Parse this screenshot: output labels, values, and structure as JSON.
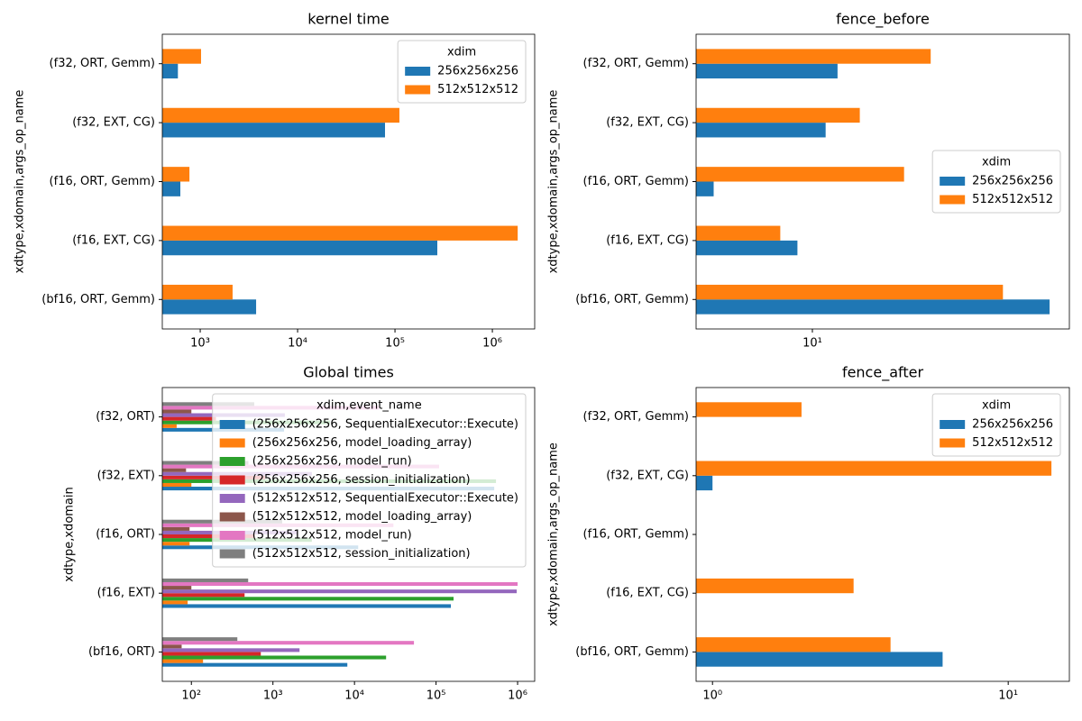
{
  "chart_data": [
    {
      "type": "bar",
      "orientation": "horizontal",
      "log_x": true,
      "title": "kernel time",
      "ylabel": "xdtype,xdomain,args_op_name",
      "categories": [
        "(bf16, ORT, Gemm)",
        "(f16, EXT, CG)",
        "(f16, ORT, Gemm)",
        "(f32, EXT, CG)",
        "(f32, ORT, Gemm)"
      ],
      "series": [
        {
          "name": "256x256x256",
          "color": "#1f77b4",
          "values": [
            3750,
            272000,
            625,
            79000,
            590
          ]
        },
        {
          "name": "512x512x512",
          "color": "#ff7f0e",
          "values": [
            2150,
            1820000,
            775,
            111000,
            1020
          ]
        }
      ],
      "xlim": [
        408,
        2720000
      ],
      "xticks": [
        {
          "value": 1000,
          "label": "10³"
        },
        {
          "value": 10000,
          "label": "10⁴"
        },
        {
          "value": 100000,
          "label": "10⁵"
        },
        {
          "value": 1000000,
          "label": "10⁶"
        }
      ],
      "legend": {
        "title": "xdim",
        "loc": "upper right"
      }
    },
    {
      "type": "bar",
      "orientation": "horizontal",
      "log_x": true,
      "title": "fence_before",
      "ylabel": "xdtype,xdomain,args_op_name",
      "categories": [
        "(bf16, ORT, Gemm)",
        "(f16, EXT, CG)",
        "(f16, ORT, Gemm)",
        "(f32, EXT, CG)",
        "(f32, ORT, Gemm)"
      ],
      "series": [
        {
          "name": "256x256x256",
          "color": "#1f77b4",
          "values": [
            76,
            8.8,
            4.3,
            11.2,
            12.4
          ]
        },
        {
          "name": "512x512x512",
          "color": "#ff7f0e",
          "values": [
            51,
            7.6,
            21.9,
            15,
            27.5
          ]
        }
      ],
      "xlim": [
        3.7,
        90
      ],
      "xticks": [
        {
          "value": 10,
          "label": "10¹"
        }
      ],
      "legend": {
        "title": "xdim",
        "loc": "center right"
      }
    },
    {
      "type": "bar",
      "orientation": "horizontal",
      "log_x": true,
      "title": "Global times",
      "ylabel": "xdtype,xdomain",
      "categories": [
        "(bf16, ORT)",
        "(f16, EXT)",
        "(f16, ORT)",
        "(f32, EXT)",
        "(f32, ORT)"
      ],
      "series": [
        {
          "name": "(256x256x256, SequentialExecutor::Execute)",
          "color": "#1f77b4",
          "values": [
            8170,
            152000,
            11100,
            517000,
            1370
          ]
        },
        {
          "name": "(256x256x256, model_loading_array)",
          "color": "#ff7f0e",
          "values": [
            139,
            90,
            95,
            100,
            66
          ]
        },
        {
          "name": "(256x256x256, model_run)",
          "color": "#2ca02c",
          "values": [
            24400,
            164000,
            3000,
            543000,
            5000
          ]
        },
        {
          "name": "(256x256x256, session_initialization)",
          "color": "#d62728",
          "values": [
            710,
            449,
            600,
            800,
            200
          ]
        },
        {
          "name": "(512x512x512, SequentialExecutor::Execute)",
          "color": "#9467bd",
          "values": [
            2120,
            975000,
            2000,
            3000,
            1400
          ]
        },
        {
          "name": "(512x512x512, model_loading_array)",
          "color": "#8c564b",
          "values": [
            76,
            100,
            95,
            86,
            100
          ]
        },
        {
          "name": "(512x512x512, model_run)",
          "color": "#e377c2",
          "values": [
            53600,
            1000000,
            30000,
            109000,
            20000
          ]
        },
        {
          "name": "(512x512x512, session_initialization)",
          "color": "#7f7f7f",
          "values": [
            366,
            497,
            1300,
            500,
            590
          ]
        }
      ],
      "xlim": [
        44,
        1620000
      ],
      "xticks": [
        {
          "value": 100,
          "label": "10²"
        },
        {
          "value": 1000,
          "label": "10³"
        },
        {
          "value": 10000,
          "label": "10⁴"
        },
        {
          "value": 100000,
          "label": "10⁵"
        },
        {
          "value": 1000000,
          "label": "10⁶"
        }
      ],
      "legend": {
        "title": "xdim,event_name",
        "loc": "upper right"
      }
    },
    {
      "type": "bar",
      "orientation": "horizontal",
      "log_x": true,
      "title": "fence_after",
      "ylabel": "xdtype,xdomain,args_op_name",
      "categories": [
        "(bf16, ORT, Gemm)",
        "(f16, EXT, CG)",
        "(f16, ORT, Gemm)",
        "(f32, EXT, CG)",
        "(f32, ORT, Gemm)"
      ],
      "series": [
        {
          "name": "256x256x256",
          "color": "#1f77b4",
          "values": [
            6,
            null,
            null,
            1,
            null
          ]
        },
        {
          "name": "512x512x512",
          "color": "#ff7f0e",
          "values": [
            4,
            3,
            null,
            14,
            2
          ]
        }
      ],
      "xlim": [
        0.88,
        16.1
      ],
      "xticks": [
        {
          "value": 1,
          "label": "10⁰"
        },
        {
          "value": 10,
          "label": "10¹"
        }
      ],
      "legend": {
        "title": "xdim",
        "loc": "upper right"
      }
    }
  ]
}
